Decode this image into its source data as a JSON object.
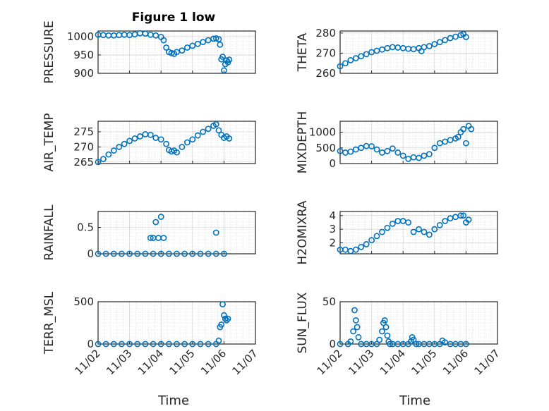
{
  "title": "Figure 1 low",
  "xlabel": "Time",
  "x_ticks": [
    "11/02",
    "11/03",
    "11/04",
    "11/05",
    "11/06",
    "11/07"
  ],
  "marker_color": "#0072bd",
  "chart_data": [
    {
      "type": "scatter",
      "ylabel": "PRESSURE",
      "ylim": [
        900,
        1015
      ],
      "yticks": [
        "1000",
        "950",
        "900"
      ],
      "ytick_values": [
        1000,
        950,
        900
      ],
      "x": [
        "11/02 00:00",
        "11/02 04:00",
        "11/02 08:00",
        "11/02 12:00",
        "11/02 16:00",
        "11/02 20:00",
        "11/03 00:00",
        "11/03 04:00",
        "11/03 08:00",
        "11/03 12:00",
        "11/03 16:00",
        "11/03 20:00",
        "11/04 00:00",
        "11/04 02:00",
        "11/04 04:00",
        "11/04 06:00",
        "11/04 08:00",
        "11/04 10:00",
        "11/04 12:00",
        "11/04 16:00",
        "11/04 20:00",
        "11/05 00:00",
        "11/05 04:00",
        "11/05 08:00",
        "11/05 12:00",
        "11/05 16:00",
        "11/05 18:00",
        "11/05 20:00",
        "11/05 21:00",
        "11/05 22:00",
        "11/05 23:00",
        "11/06 00:00",
        "11/06 01:00",
        "11/06 02:00",
        "11/06 03:00",
        "11/06 04:00"
      ],
      "y": [
        1005,
        1004,
        1003,
        1003,
        1004,
        1005,
        1004,
        1006,
        1009,
        1008,
        1005,
        1003,
        999,
        990,
        970,
        958,
        955,
        953,
        958,
        962,
        970,
        975,
        980,
        985,
        990,
        994,
        995,
        993,
        978,
        938,
        945,
        908,
        925,
        935,
        930,
        937
      ]
    },
    {
      "type": "scatter",
      "ylabel": "THETA",
      "ylim": [
        260,
        281
      ],
      "yticks": [
        "280",
        "270",
        "260"
      ],
      "ytick_values": [
        280,
        270,
        260
      ],
      "x": [
        "11/02 00:00",
        "11/02 04:00",
        "11/02 08:00",
        "11/02 12:00",
        "11/02 16:00",
        "11/02 20:00",
        "11/03 00:00",
        "11/03 04:00",
        "11/03 08:00",
        "11/03 12:00",
        "11/03 16:00",
        "11/03 20:00",
        "11/04 00:00",
        "11/04 04:00",
        "11/04 08:00",
        "11/04 12:00",
        "11/04 14:00",
        "11/04 16:00",
        "11/04 20:00",
        "11/05 00:00",
        "11/05 04:00",
        "11/05 08:00",
        "11/05 12:00",
        "11/05 16:00",
        "11/05 20:00",
        "11/05 22:00",
        "11/06 00:00"
      ],
      "y": [
        263.5,
        265,
        266.5,
        267.5,
        268.5,
        269.5,
        270.5,
        271.2,
        271.8,
        272.5,
        273,
        272.8,
        272.5,
        272.2,
        272,
        272.5,
        271,
        273,
        273.5,
        274.5,
        275.5,
        276.5,
        277.5,
        278.2,
        279,
        279.5,
        278
      ]
    },
    {
      "type": "scatter",
      "ylabel": "AIR_TEMP",
      "ylim": [
        264.5,
        278.5
      ],
      "yticks": [
        "275",
        "270",
        "265"
      ],
      "ytick_values": [
        275,
        270,
        265
      ],
      "x": [
        "11/02 00:00",
        "11/02 04:00",
        "11/02 08:00",
        "11/02 12:00",
        "11/02 16:00",
        "11/02 20:00",
        "11/03 00:00",
        "11/03 04:00",
        "11/03 08:00",
        "11/03 12:00",
        "11/03 16:00",
        "11/03 20:00",
        "11/04 00:00",
        "11/04 04:00",
        "11/04 06:00",
        "11/04 08:00",
        "11/04 10:00",
        "11/04 12:00",
        "11/04 16:00",
        "11/04 20:00",
        "11/05 00:00",
        "11/05 04:00",
        "11/05 08:00",
        "11/05 12:00",
        "11/05 16:00",
        "11/05 18:00",
        "11/05 20:00",
        "11/05 22:00",
        "11/06 00:00",
        "11/06 02:00",
        "11/06 04:00"
      ],
      "y": [
        265,
        266,
        267.5,
        268.8,
        270,
        271,
        272,
        272.8,
        273.5,
        274.2,
        274,
        273,
        272.5,
        271,
        269,
        268.5,
        268.8,
        268.2,
        270,
        271.5,
        272.5,
        273.8,
        275,
        276,
        277,
        277.5,
        275.5,
        274,
        273,
        273.5,
        272.8
      ]
    },
    {
      "type": "scatter",
      "ylabel": "MIXDEPTH",
      "ylim": [
        0,
        1350
      ],
      "yticks": [
        "1000",
        "500",
        "0"
      ],
      "ytick_values": [
        1000,
        500,
        0
      ],
      "x": [
        "11/02 00:00",
        "11/02 04:00",
        "11/02 08:00",
        "11/02 12:00",
        "11/02 16:00",
        "11/02 20:00",
        "11/03 00:00",
        "11/03 04:00",
        "11/03 08:00",
        "11/03 12:00",
        "11/03 16:00",
        "11/03 20:00",
        "11/04 00:00",
        "11/04 04:00",
        "11/04 08:00",
        "11/04 12:00",
        "11/04 16:00",
        "11/04 20:00",
        "11/05 00:00",
        "11/05 04:00",
        "11/05 08:00",
        "11/05 12:00",
        "11/05 16:00",
        "11/05 18:00",
        "11/05 20:00",
        "11/05 22:00",
        "11/06 00:00",
        "11/06 02:00",
        "11/06 04:00"
      ],
      "y": [
        400,
        350,
        380,
        450,
        500,
        560,
        550,
        450,
        350,
        400,
        480,
        350,
        250,
        150,
        200,
        180,
        250,
        300,
        500,
        650,
        700,
        750,
        800,
        850,
        1000,
        1100,
        650,
        1200,
        1100
      ]
    },
    {
      "type": "scatter",
      "ylabel": "RAINFALL",
      "ylim": [
        0,
        0.8
      ],
      "yticks": [
        "0.5",
        "0"
      ],
      "ytick_values": [
        0.5,
        0
      ],
      "x": [
        "11/02 00:00",
        "11/02 06:00",
        "11/02 12:00",
        "11/02 18:00",
        "11/03 00:00",
        "11/03 06:00",
        "11/03 12:00",
        "11/03 18:00",
        "11/04 00:00",
        "11/04 06:00",
        "11/04 12:00",
        "11/04 18:00",
        "11/05 00:00",
        "11/05 06:00",
        "11/05 12:00",
        "11/05 18:00",
        "11/06 00:00",
        "11/03 16:00",
        "11/03 18:00",
        "11/03 20:00",
        "11/03 22:00",
        "11/04 00:00",
        "11/04 02:00",
        "11/05 18:00"
      ],
      "y": [
        0,
        0,
        0,
        0,
        0,
        0,
        0,
        0,
        0,
        0,
        0,
        0,
        0,
        0,
        0,
        0,
        0,
        0.3,
        0.3,
        0.6,
        0.3,
        0.7,
        0.3,
        0.4
      ]
    },
    {
      "type": "scatter",
      "ylabel": "H2OMIXRA",
      "ylim": [
        1.2,
        4.3
      ],
      "yticks": [
        "4",
        "3",
        "2"
      ],
      "ytick_values": [
        4,
        3,
        2
      ],
      "x": [
        "11/02 00:00",
        "11/02 04:00",
        "11/02 08:00",
        "11/02 12:00",
        "11/02 16:00",
        "11/02 20:00",
        "11/03 00:00",
        "11/03 04:00",
        "11/03 08:00",
        "11/03 12:00",
        "11/03 16:00",
        "11/03 20:00",
        "11/04 00:00",
        "11/04 04:00",
        "11/04 08:00",
        "11/04 12:00",
        "11/04 16:00",
        "11/04 20:00",
        "11/05 00:00",
        "11/05 04:00",
        "11/05 08:00",
        "11/05 12:00",
        "11/05 16:00",
        "11/05 20:00",
        "11/05 22:00",
        "11/06 00:00",
        "11/06 02:00"
      ],
      "y": [
        1.5,
        1.5,
        1.4,
        1.5,
        1.7,
        1.9,
        2.2,
        2.5,
        2.8,
        3.1,
        3.4,
        3.6,
        3.6,
        3.5,
        2.8,
        3,
        2.8,
        2.6,
        3,
        3.3,
        3.6,
        3.8,
        3.9,
        4,
        4,
        3.5,
        3.7
      ]
    },
    {
      "type": "scatter",
      "ylabel": "TERR_MSL",
      "ylim": [
        0,
        500
      ],
      "yticks": [
        "500",
        "0"
      ],
      "ytick_values": [
        500,
        0
      ],
      "x": [
        "11/02 00:00",
        "11/02 06:00",
        "11/02 12:00",
        "11/02 18:00",
        "11/03 00:00",
        "11/03 06:00",
        "11/03 12:00",
        "11/03 18:00",
        "11/04 00:00",
        "11/04 06:00",
        "11/04 12:00",
        "11/04 18:00",
        "11/05 00:00",
        "11/05 06:00",
        "11/05 12:00",
        "11/05 18:00",
        "11/05 20:00",
        "11/05 21:00",
        "11/05 22:00",
        "11/05 23:00",
        "11/06 00:00",
        "11/06 01:00",
        "11/06 02:00",
        "11/06 03:00"
      ],
      "y": [
        0,
        0,
        0,
        0,
        0,
        0,
        0,
        0,
        0,
        0,
        0,
        0,
        0,
        0,
        0,
        0,
        40,
        200,
        230,
        470,
        340,
        300,
        280,
        300
      ]
    },
    {
      "type": "scatter",
      "ylabel": "SUN_FLUX",
      "ylim": [
        0,
        50
      ],
      "yticks": [
        "50",
        "0"
      ],
      "ytick_values": [
        50,
        0
      ],
      "x": [
        "11/02 00:00",
        "11/02 06:00",
        "11/02 08:00",
        "11/02 10:00",
        "11/02 11:00",
        "11/02 12:00",
        "11/02 13:00",
        "11/02 14:00",
        "11/02 16:00",
        "11/02 20:00",
        "11/03 00:00",
        "11/03 04:00",
        "11/03 06:00",
        "11/03 08:00",
        "11/03 09:00",
        "11/03 10:00",
        "11/03 11:00",
        "11/03 12:00",
        "11/03 13:00",
        "11/03 14:00",
        "11/03 16:00",
        "11/03 20:00",
        "11/04 00:00",
        "11/04 04:00",
        "11/04 06:00",
        "11/04 07:00",
        "11/04 08:00",
        "11/04 10:00",
        "11/04 12:00",
        "11/04 16:00",
        "11/04 20:00",
        "11/05 00:00",
        "11/05 04:00",
        "11/05 06:00",
        "11/05 08:00",
        "11/05 12:00",
        "11/05 16:00",
        "11/05 20:00",
        "11/06 00:00"
      ],
      "y": [
        0,
        0,
        3,
        15,
        40,
        28,
        20,
        8,
        0,
        0,
        0,
        0,
        5,
        15,
        25,
        28,
        20,
        10,
        3,
        0,
        0,
        0,
        0,
        0,
        3,
        8,
        5,
        0,
        0,
        0,
        0,
        0,
        0,
        4,
        2,
        0,
        0,
        0,
        0
      ]
    }
  ]
}
